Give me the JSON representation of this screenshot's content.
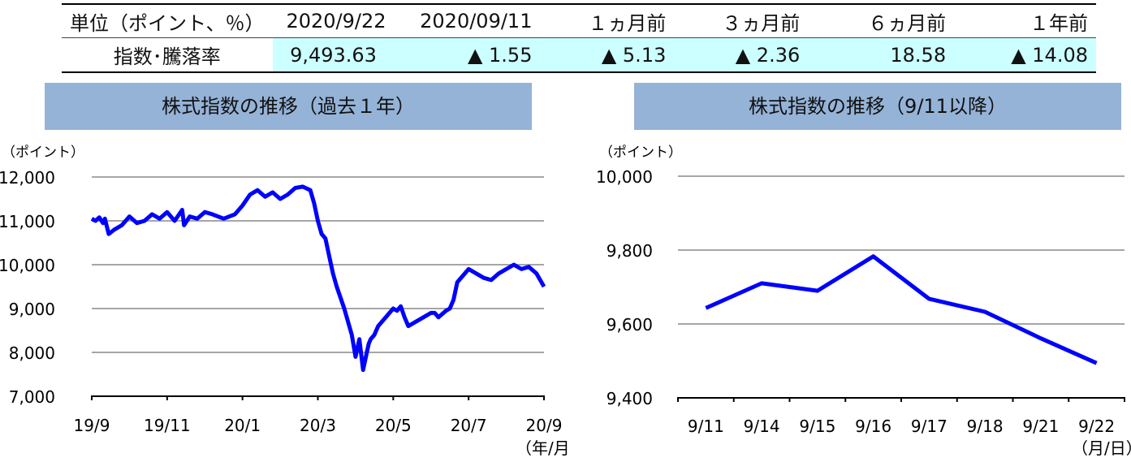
{
  "table": {
    "header": [
      "単位（ポイント、％）",
      "2020/9/22",
      "2020/09/11",
      "１ヵ月前",
      "３ヵ月前",
      "６ヵ月前",
      "１年前"
    ],
    "row_label": "指数･騰落率",
    "values": [
      "9,493.63",
      "▲ 1.55",
      "▲ 5.13",
      "▲ 2.36",
      "18.58",
      "▲ 14.08"
    ]
  },
  "colors": {
    "line": "#0000ff",
    "grid": "#a6a6a6",
    "title_bg": "#95b3d7",
    "value_bg": "#ccffff"
  },
  "chart_data": [
    {
      "type": "line",
      "title": "株式指数の推移（過去１年）",
      "ylabel": "（ポイント）",
      "xlabel": "（年/月）",
      "ylim": [
        7000,
        12000
      ],
      "yticks": [
        "7,000",
        "8,000",
        "9,000",
        "10,000",
        "11,000",
        "12,000"
      ],
      "xticks": [
        "19/9",
        "19/11",
        "20/1",
        "20/3",
        "20/5",
        "20/7",
        "20/9"
      ],
      "grid": true,
      "series": [
        {
          "x_months": [
            0,
            0.1,
            0.2,
            0.3,
            0.35,
            0.45,
            0.6,
            0.8,
            1.0,
            1.2,
            1.4,
            1.6,
            1.8,
            2.0,
            2.2,
            2.4,
            2.45,
            2.6,
            2.8,
            3.0,
            3.2,
            3.5,
            3.8,
            4.0,
            4.2,
            4.4,
            4.6,
            4.8,
            5.0,
            5.2,
            5.4,
            5.6,
            5.8,
            5.9,
            6.0,
            6.1,
            6.2,
            6.3,
            6.4,
            6.5,
            6.7,
            6.9,
            7.0,
            7.1,
            7.2,
            7.25,
            7.3,
            7.35,
            7.4,
            7.5,
            7.55,
            7.6,
            7.7,
            7.8,
            7.9,
            8.0,
            8.1,
            8.2,
            8.3,
            8.4,
            8.6,
            8.8,
            9.0,
            9.1,
            9.2,
            9.4,
            9.5,
            9.6,
            9.7,
            9.8,
            10.0,
            10.2,
            10.4,
            10.6,
            10.8,
            11.0,
            11.2,
            11.4,
            11.6,
            11.8,
            12.0
          ],
          "values": [
            11050,
            11000,
            11080,
            10950,
            11050,
            10700,
            10800,
            10900,
            11100,
            10950,
            11000,
            11150,
            11050,
            11200,
            11000,
            11250,
            10900,
            11100,
            11050,
            11200,
            11150,
            11050,
            11150,
            11350,
            11600,
            11700,
            11550,
            11650,
            11500,
            11600,
            11750,
            11780,
            11700,
            11400,
            11000,
            10700,
            10600,
            10200,
            9800,
            9500,
            9000,
            8400,
            7900,
            8300,
            7600,
            7800,
            8000,
            8200,
            8300,
            8400,
            8500,
            8600,
            8700,
            8800,
            8900,
            9000,
            8950,
            9050,
            8800,
            8600,
            8700,
            8800,
            8900,
            8900,
            8800,
            8950,
            9000,
            9200,
            9600,
            9700,
            9900,
            9800,
            9700,
            9650,
            9800,
            9900,
            10000,
            9900,
            9950,
            9800,
            9500
          ]
        }
      ]
    },
    {
      "type": "line",
      "title": "株式指数の推移（9/11以降）",
      "ylabel": "（ポイント）",
      "xlabel": "（月/日）",
      "ylim": [
        9400,
        10000
      ],
      "yticks": [
        "9,400",
        "9,600",
        "9,800",
        "10,000"
      ],
      "categories": [
        "9/11",
        "9/14",
        "9/15",
        "9/16",
        "9/17",
        "9/18",
        "9/21",
        "9/22"
      ],
      "grid": true,
      "series": [
        {
          "values": [
            9643,
            9710,
            9690,
            9783,
            9668,
            9633,
            9561,
            9494
          ]
        }
      ]
    }
  ]
}
